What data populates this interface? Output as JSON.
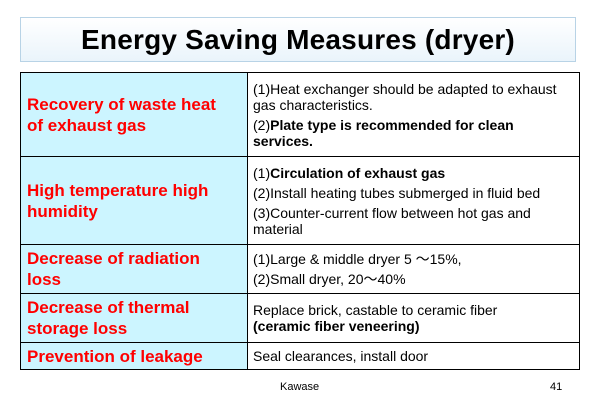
{
  "slide": {
    "title": "Energy Saving Measures (dryer)",
    "footer_author": "Kawase",
    "footer_page": "41"
  },
  "colors": {
    "label_background": "#ccf5ff",
    "label_text": "#ff0000",
    "title_border": "#b8d3e6"
  },
  "rows": [
    {
      "label_lines": [
        "Recovery of  waste heat",
        "of exhaust gas"
      ],
      "items": [
        {
          "prefix": "(1)",
          "text": "Heat exchanger should be adapted to exhaust gas characteristics.",
          "bold": ""
        },
        {
          "prefix": "(2)",
          "text": "",
          "bold": "Plate type is recommended for clean services."
        }
      ]
    },
    {
      "label_lines": [
        "High temperature high",
        "humidity"
      ],
      "items": [
        {
          "prefix": "(1)",
          "text": "",
          "bold": "Circulation of exhaust gas"
        },
        {
          "prefix": "(2)",
          "text": "Install heating tubes submerged in fluid bed",
          "bold": ""
        },
        {
          "prefix": "(3)",
          "text": "Counter-current flow between hot gas and material",
          "bold": ""
        }
      ]
    },
    {
      "label_lines": [
        "Decrease of radiation",
        "loss"
      ],
      "items": [
        {
          "prefix": "(1)",
          "text": "Large & middle dryer  5 ～15%,",
          "bold": ""
        },
        {
          "prefix": "(2)",
          "text": "Small dryer, 20～40%",
          "bold": ""
        }
      ]
    },
    {
      "label_lines": [
        "Decrease of thermal",
        "storage loss"
      ],
      "plain_line": "Replace brick, castable to ceramic fiber",
      "bold_line": "(ceramic fiber veneering)"
    },
    {
      "label_lines": [
        "Prevention of leakage"
      ],
      "plain_line": "Seal clearances, install door"
    }
  ]
}
